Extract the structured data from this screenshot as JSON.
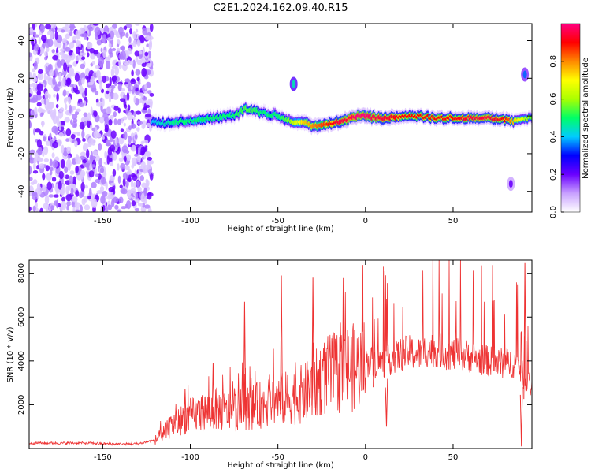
{
  "title": "C2E1.2024.162.09.40.R15",
  "chart_data": [
    {
      "type": "heatmap",
      "xlabel": "Height of straight line (km)",
      "ylabel": "Frequency (Hz)",
      "xlim": [
        -192,
        95
      ],
      "ylim": [
        -51,
        49
      ],
      "xticks": [
        -150,
        -100,
        -50,
        0,
        50
      ],
      "yticks": [
        -40,
        -20,
        0,
        20,
        40
      ],
      "xtick_labels": [
        "-150",
        "-100",
        "-50",
        "0",
        "50"
      ],
      "ytick_labels": [
        "-40",
        "-20",
        "0",
        "20",
        "40"
      ],
      "colorbar": {
        "label": "Normalized spectral amplitude",
        "range": [
          0,
          1
        ],
        "ticks": [
          0.0,
          0.2,
          0.4,
          0.6,
          0.8
        ],
        "tick_labels": [
          "0.0",
          "0.2",
          "0.4",
          "0.6",
          "0.8"
        ],
        "colors": [
          "#ffffff",
          "#c8a0ff",
          "#6a00ff",
          "#0000ff",
          "#00ccff",
          "#00ff66",
          "#aaff00",
          "#ffff00",
          "#ff8800",
          "#ff0000",
          "#ff0080"
        ]
      },
      "noise_region": {
        "x_range": [
          -192,
          -122
        ],
        "amplitude": 0.15
      },
      "ridge": {
        "x": [
          -122,
          -115,
          -105,
          -95,
          -85,
          -75,
          -68,
          -60,
          -50,
          -45,
          -40,
          -35,
          -30,
          -25,
          -20,
          -15,
          -10,
          -5,
          0,
          5,
          10,
          20,
          30,
          40,
          50,
          60,
          70,
          80,
          85,
          90,
          95
        ],
        "y": [
          -3,
          -4,
          -3,
          -2,
          -1,
          0,
          4,
          2,
          0,
          -2,
          -3,
          -4,
          -5,
          -5,
          -4,
          -3,
          -2,
          0,
          0,
          -1,
          -1,
          0,
          0,
          -1,
          -1,
          -1,
          -1,
          -2,
          -3,
          -2,
          -1
        ],
        "amplitude": [
          0.35,
          0.4,
          0.45,
          0.45,
          0.45,
          0.45,
          0.5,
          0.45,
          0.45,
          0.5,
          0.6,
          0.7,
          0.75,
          0.8,
          0.85,
          0.9,
          0.9,
          0.95,
          0.95,
          0.9,
          0.9,
          0.85,
          0.85,
          0.85,
          0.85,
          0.9,
          0.9,
          0.85,
          0.7,
          0.6,
          0.5
        ]
      },
      "features": [
        {
          "x": -41,
          "y": 17,
          "amplitude": 0.45
        },
        {
          "x": 91,
          "y": 22,
          "amplitude": 0.35
        },
        {
          "x": 83,
          "y": -36,
          "amplitude": 0.2
        }
      ]
    },
    {
      "type": "line",
      "xlabel": "Height of straight line (km)",
      "ylabel": "SNR (10 * v/v)",
      "xlim": [
        -192,
        95
      ],
      "ylim": [
        0,
        8600
      ],
      "xticks": [
        -150,
        -100,
        -50,
        0,
        50
      ],
      "yticks": [
        2000,
        4000,
        6000,
        8000
      ],
      "xtick_labels": [
        "-150",
        "-100",
        "-50",
        "0",
        "50"
      ],
      "ytick_labels": [
        "2000",
        "4000",
        "6000",
        "8000"
      ],
      "color": "#ee3333",
      "x": [
        -192,
        -180,
        -170,
        -160,
        -150,
        -140,
        -130,
        -125,
        -120,
        -115,
        -110,
        -105,
        -100,
        -95,
        -90,
        -85,
        -80,
        -75,
        -70,
        -65,
        -60,
        -55,
        -50,
        -45,
        -40,
        -35,
        -30,
        -25,
        -20,
        -15,
        -10,
        -5,
        0,
        5,
        10,
        15,
        20,
        25,
        30,
        35,
        40,
        45,
        50,
        55,
        60,
        65,
        70,
        75,
        80,
        85,
        88,
        90,
        93,
        95
      ],
      "y": [
        250,
        250,
        250,
        250,
        220,
        200,
        220,
        300,
        400,
        700,
        1100,
        1300,
        1500,
        1600,
        1700,
        1800,
        1700,
        1700,
        1800,
        1900,
        2000,
        2200,
        2200,
        2300,
        2400,
        2500,
        2800,
        3200,
        3400,
        3500,
        3700,
        3700,
        3900,
        4000,
        3900,
        4100,
        4300,
        4400,
        4300,
        4500,
        4500,
        4400,
        4300,
        4300,
        4200,
        4100,
        4000,
        3900,
        3900,
        3900,
        3700,
        3300,
        3100,
        2700
      ],
      "spikes": [
        {
          "x": -103,
          "y": 2700
        },
        {
          "x": -87,
          "y": 3900
        },
        {
          "x": -69,
          "y": 6700
        },
        {
          "x": -48,
          "y": 7900
        },
        {
          "x": -30,
          "y": 7800
        },
        {
          "x": 5,
          "y": 5900
        },
        {
          "x": 12,
          "y": 1000
        },
        {
          "x": 91,
          "y": 8500
        },
        {
          "x": 89,
          "y": 100
        }
      ]
    }
  ]
}
